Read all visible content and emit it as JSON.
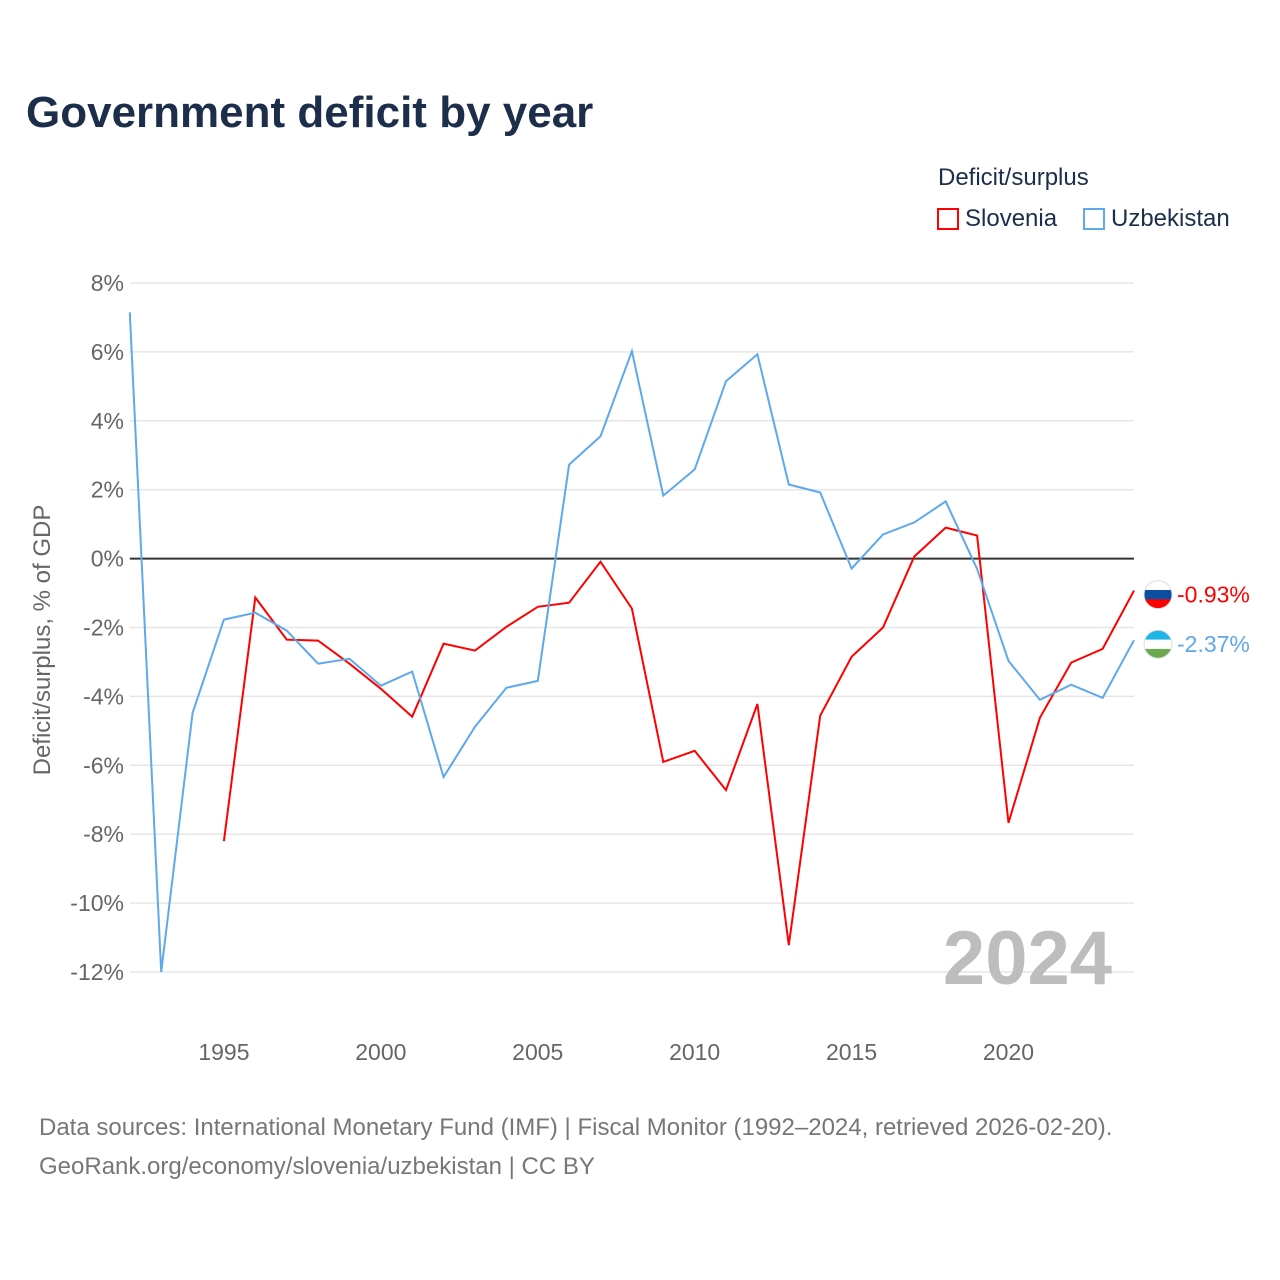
{
  "chart_data": {
    "type": "line",
    "title": "Government deficit by year",
    "ylabel": "Deficit/surplus, % of GDP",
    "xlabel": "",
    "legend_title": "Deficit/surplus",
    "legend_position": "top-right",
    "xlim": [
      1992,
      2024
    ],
    "ylim": [
      -12,
      8
    ],
    "x_ticks": [
      1995,
      2000,
      2005,
      2010,
      2015,
      2020
    ],
    "y_ticks": [
      8,
      6,
      4,
      2,
      0,
      -2,
      -4,
      -6,
      -8,
      -10,
      -12
    ],
    "y_tick_labels": [
      "8%",
      "6%",
      "4%",
      "2%",
      "0%",
      "-2%",
      "-4%",
      "-6%",
      "-8%",
      "-10%",
      "-12%"
    ],
    "year_watermark": "2024",
    "series": [
      {
        "name": "Slovenia",
        "color": "#ff0000",
        "end_label": "-0.93%",
        "x": [
          1995,
          1996,
          1997,
          1998,
          1999,
          2000,
          2001,
          2002,
          2003,
          2004,
          2005,
          2006,
          2007,
          2008,
          2009,
          2010,
          2011,
          2012,
          2013,
          2014,
          2015,
          2016,
          2017,
          2018,
          2019,
          2020,
          2021,
          2022,
          2023,
          2024
        ],
        "values": [
          -8.2,
          -1.13,
          -2.35,
          -2.38,
          -3.05,
          -3.78,
          -4.59,
          -2.47,
          -2.67,
          -1.98,
          -1.4,
          -1.28,
          -0.09,
          -1.45,
          -5.9,
          -5.58,
          -6.72,
          -4.22,
          -11.22,
          -4.56,
          -2.85,
          -2.0,
          0.06,
          0.9,
          0.67,
          -7.67,
          -4.62,
          -3.02,
          -2.62,
          -0.93
        ]
      },
      {
        "name": "Uzbekistan",
        "color": "#5ea8ec",
        "end_label": "-2.37%",
        "x": [
          1992,
          1993,
          1994,
          1995,
          1996,
          1997,
          1998,
          1999,
          2000,
          2001,
          2002,
          2003,
          2004,
          2005,
          2006,
          2007,
          2008,
          2009,
          2010,
          2011,
          2012,
          2013,
          2014,
          2015,
          2016,
          2017,
          2018,
          2019,
          2020,
          2021,
          2022,
          2023,
          2024
        ],
        "values": [
          7.15,
          -12.0,
          -4.48,
          -1.77,
          -1.57,
          -2.09,
          -3.05,
          -2.91,
          -3.69,
          -3.28,
          -6.34,
          -4.88,
          -3.75,
          -3.55,
          2.73,
          3.55,
          6.02,
          1.83,
          2.59,
          5.15,
          5.93,
          2.15,
          1.92,
          -0.29,
          0.7,
          1.05,
          1.66,
          -0.3,
          -2.97,
          -4.1,
          -3.66,
          -4.04,
          -2.37
        ]
      }
    ]
  },
  "footer": {
    "line1": "Data sources: International Monetary Fund (IMF) | Fiscal Monitor (1992–2024, retrieved 2026-02-20).",
    "line2": "GeoRank.org/economy/slovenia/uzbekistan | CC BY"
  }
}
